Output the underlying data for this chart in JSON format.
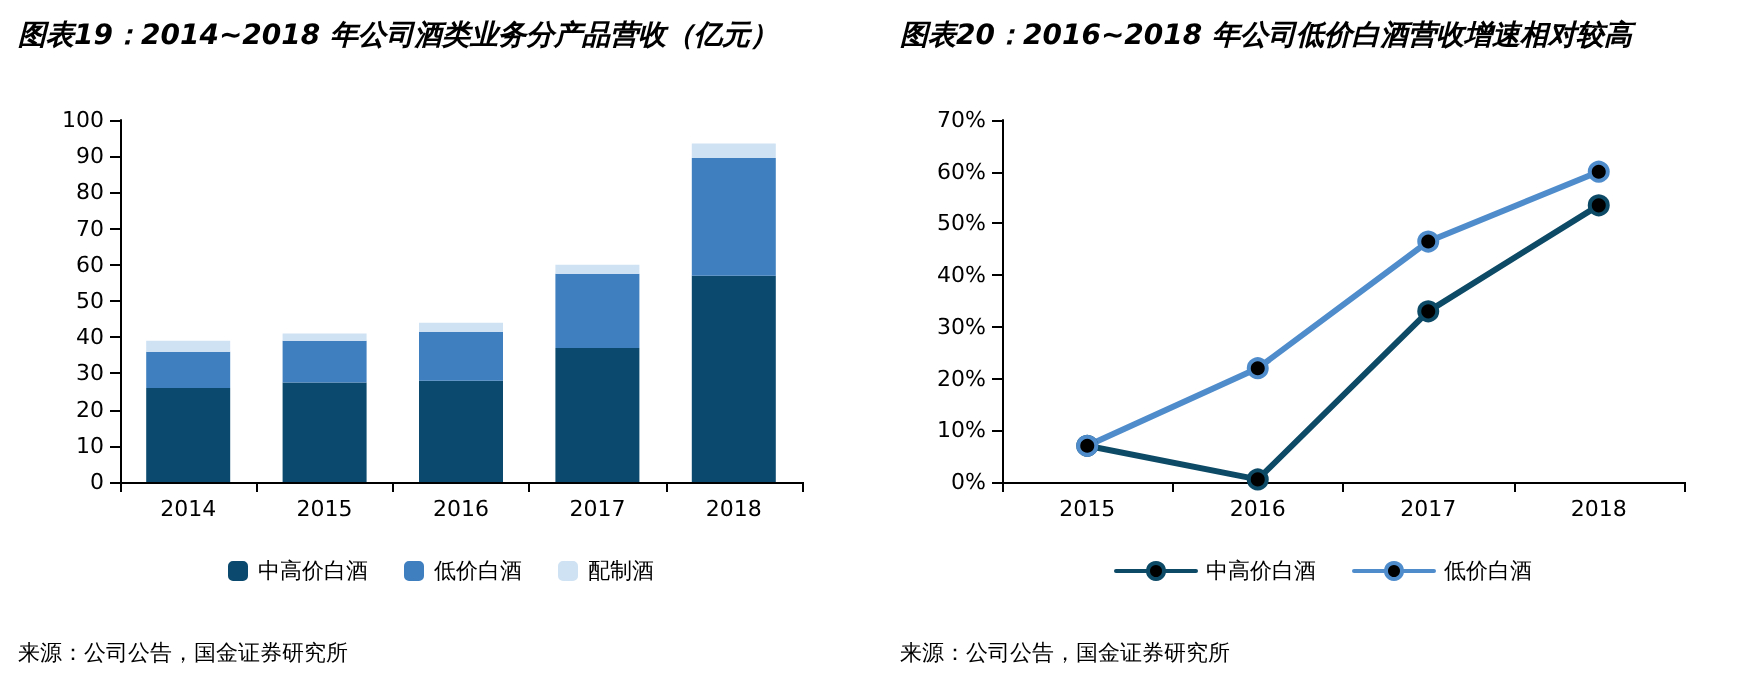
{
  "chart_data": [
    {
      "type": "bar",
      "title": "图表19：2014~2018 年公司酒类业务分产品营收（亿元）",
      "categories": [
        "2014",
        "2015",
        "2016",
        "2017",
        "2018"
      ],
      "stacked": true,
      "series": [
        {
          "name": "中高价白酒",
          "color": "#0b4a6e",
          "values": [
            26,
            27.5,
            28,
            37,
            57
          ]
        },
        {
          "name": "低价白酒",
          "color": "#3f7fbf",
          "values": [
            10,
            11.5,
            13.5,
            20.5,
            32.5
          ]
        },
        {
          "name": "配制酒",
          "color": "#cfe2f3",
          "values": [
            3,
            2,
            2.5,
            2.5,
            4
          ]
        }
      ],
      "ylim": [
        0,
        100
      ],
      "yticks": [
        0,
        10,
        20,
        30,
        40,
        50,
        60,
        70,
        80,
        90,
        100
      ],
      "grid": false,
      "legend": "bottom",
      "annotations": [
        "来源：公司公告，国金证券研究所"
      ]
    },
    {
      "type": "line",
      "title": "图表20：2016~2018 年公司低价白酒营收增速相对较高",
      "categories": [
        "2015",
        "2016",
        "2017",
        "2018"
      ],
      "marker": "circle",
      "line_style": "solid",
      "series": [
        {
          "name": "中高价白酒",
          "color": "#0d4a66",
          "values": [
            7,
            0.5,
            33,
            53.5
          ]
        },
        {
          "name": "低价白酒",
          "color": "#4f8ccc",
          "values": [
            7,
            22,
            46.5,
            60
          ]
        }
      ],
      "ylim": [
        0,
        70
      ],
      "yticks": [
        {
          "value": 0,
          "label": "0%"
        },
        {
          "value": 10,
          "label": "10%"
        },
        {
          "value": 20,
          "label": "20%"
        },
        {
          "value": 30,
          "label": "30%"
        },
        {
          "value": 40,
          "label": "40%"
        },
        {
          "value": 50,
          "label": "50%"
        },
        {
          "value": 60,
          "label": "60%"
        },
        {
          "value": 70,
          "label": "70%"
        }
      ],
      "grid": false,
      "legend": "bottom",
      "annotations": [
        "来源：公司公告，国金证券研究所"
      ]
    }
  ]
}
